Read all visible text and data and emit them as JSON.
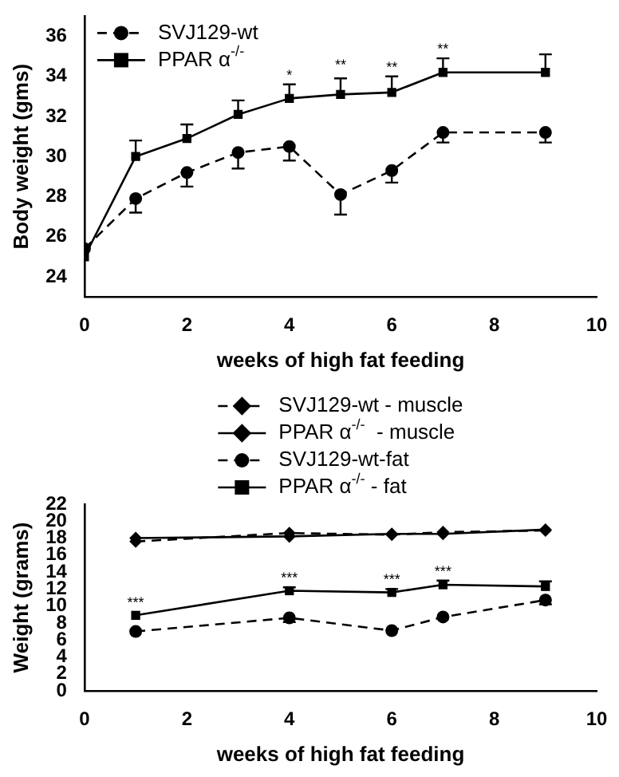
{
  "chart_data": [
    {
      "type": "line",
      "xlabel": "weeks of high fat feeding",
      "ylabel": "Body weight (gms)",
      "x": [
        0,
        1,
        2,
        3,
        4,
        5,
        6,
        7,
        9
      ],
      "xlim": [
        0,
        10
      ],
      "xticks": [
        0,
        2,
        4,
        6,
        8,
        10
      ],
      "ylim": [
        23,
        37
      ],
      "yticks": [
        24,
        26,
        28,
        30,
        32,
        34,
        36
      ],
      "grid": false,
      "legend": "top left",
      "series": [
        {
          "name": "SVJ129-wt",
          "color": "#000000",
          "marker": "circle",
          "line_style": "dashed",
          "values": [
            25.4,
            27.9,
            29.2,
            30.2,
            30.5,
            28.1,
            29.3,
            31.2,
            31.2
          ],
          "errors": [
            null,
            [
              27.2,
              27.9
            ],
            [
              28.5,
              29.2
            ],
            [
              29.4,
              30.2
            ],
            [
              29.8,
              30.5
            ],
            [
              27.1,
              28.1
            ],
            [
              28.7,
              29.3
            ],
            [
              30.7,
              31.2
            ],
            [
              30.7,
              31.2
            ]
          ]
        },
        {
          "name": "PPAR α$^{-/-}$",
          "color": "#000000",
          "marker": "square",
          "line_style": "solid",
          "values": [
            25.0,
            30.0,
            30.9,
            32.1,
            32.9,
            33.1,
            33.2,
            34.2,
            34.2
          ],
          "errors": [
            null,
            [
              30.0,
              30.8
            ],
            [
              30.9,
              31.6
            ],
            [
              32.1,
              32.8
            ],
            [
              32.9,
              33.6
            ],
            [
              33.1,
              33.9
            ],
            [
              33.2,
              34.0
            ],
            [
              34.2,
              34.9
            ],
            [
              34.2,
              35.1
            ]
          ]
        }
      ],
      "annotations": [
        {
          "text": "*",
          "x": 4,
          "y": 33.6
        },
        {
          "text": "**",
          "x": 5,
          "y": 34.1
        },
        {
          "text": "**",
          "x": 6,
          "y": 34.0
        },
        {
          "text": "**",
          "x": 7,
          "y": 34.9
        }
      ]
    },
    {
      "type": "line",
      "xlabel": "weeks of high fat feeding",
      "ylabel": "Weight (grams)",
      "x": [
        1,
        4,
        6,
        7,
        9
      ],
      "xlim": [
        0,
        10
      ],
      "xticks": [
        0,
        2,
        4,
        6,
        8,
        10
      ],
      "ylim": [
        0,
        22
      ],
      "yticks": [
        0,
        2,
        4,
        6,
        8,
        10,
        12,
        14,
        16,
        18,
        20,
        22
      ],
      "grid": false,
      "legend": "top",
      "series": [
        {
          "name": "SVJ129-wt - muscle",
          "color": "#000000",
          "marker": "diamond",
          "line_style": "dashed",
          "values": [
            17.6,
            18.6,
            18.4,
            18.7,
            18.9
          ]
        },
        {
          "name": "PPAR α$^{-/-}$  - muscle",
          "color": "#000000",
          "marker": "diamond",
          "line_style": "solid",
          "values": [
            18.0,
            18.2,
            18.5,
            18.5,
            19.0
          ]
        },
        {
          "name": "SVJ129-wt-fat",
          "color": "#000000",
          "marker": "circle",
          "line_style": "dashed",
          "values": [
            7.0,
            8.6,
            7.1,
            8.7,
            10.7
          ],
          "errors": [
            null,
            [
              8.1,
              8.6
            ],
            null,
            null,
            [
              10.2,
              10.7
            ]
          ]
        },
        {
          "name": "PPAR α$^{-/-}$ - fat",
          "color": "#000000",
          "marker": "square",
          "line_style": "solid",
          "values": [
            8.9,
            11.8,
            11.6,
            12.5,
            12.3
          ],
          "errors": [
            null,
            [
              11.8,
              12.2
            ],
            [
              11.6,
              12.0
            ],
            [
              12.5,
              13.0
            ],
            [
              12.3,
              12.9
            ]
          ]
        }
      ],
      "annotations": [
        {
          "text": "***",
          "x": 1,
          "y": 9.3
        },
        {
          "text": "***",
          "x": 4,
          "y": 12.2
        },
        {
          "text": "***",
          "x": 6,
          "y": 12.0
        },
        {
          "text": "***",
          "x": 7,
          "y": 13.0
        }
      ]
    }
  ]
}
